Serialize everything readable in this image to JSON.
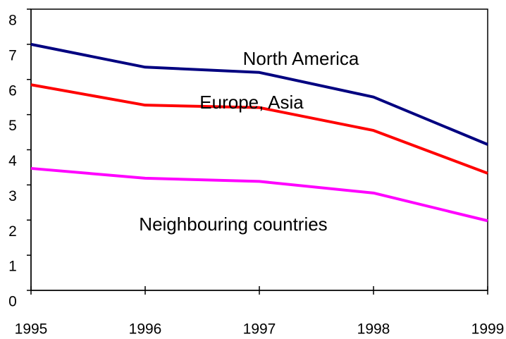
{
  "chart_data": {
    "type": "line",
    "x": [
      1995,
      1996,
      1997,
      1998,
      1999
    ],
    "series": [
      {
        "name": "North America",
        "color": "#000080",
        "values": [
          7.0,
          6.35,
          6.2,
          5.5,
          4.15
        ]
      },
      {
        "name": "Europe, Asia",
        "color": "#ff0000",
        "values": [
          5.85,
          5.27,
          5.2,
          4.55,
          3.33
        ]
      },
      {
        "name": "Neighbouring countries",
        "color": "#ff00ff",
        "values": [
          3.47,
          3.19,
          3.1,
          2.77,
          1.98
        ]
      }
    ],
    "xlim": [
      1995,
      1999
    ],
    "xticks": [
      1995,
      1996,
      1997,
      1998,
      1999
    ],
    "ylim": [
      0,
      8
    ],
    "yticks": [
      0,
      1,
      2,
      3,
      4,
      5,
      6,
      7,
      8
    ]
  }
}
